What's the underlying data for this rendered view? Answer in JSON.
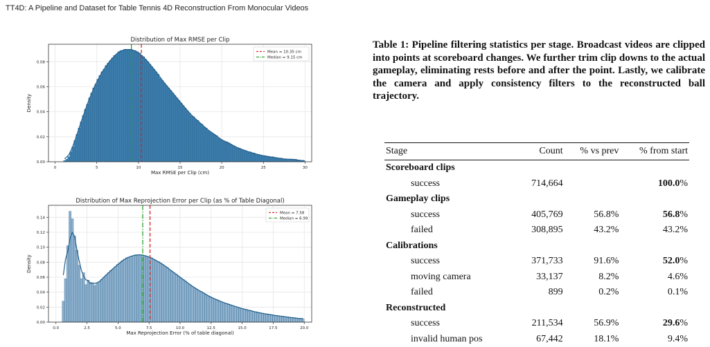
{
  "header": {
    "running_title": "TT4D: A Pipeline and Dataset for Table Tennis 4D Reconstruction From Monocular Videos"
  },
  "colors": {
    "bar_fill": "#3b7dad",
    "bar_fill_light": "#8fb2cf",
    "bar_edge": "#2a5f86",
    "kde_line": "#1f5e8c",
    "mean_line": "#d62728",
    "median_line": "#2ca02c"
  },
  "chart_data": [
    {
      "type": "bar",
      "title": "Distribution of Max RMSE per Clip",
      "xlabel": "Max RMSE per Clip (cm)",
      "ylabel": "Density",
      "xlim": [
        -0.8,
        30.8
      ],
      "ylim": [
        0,
        0.094
      ],
      "xticks": [
        0,
        5,
        10,
        15,
        20,
        25,
        30
      ],
      "yticks": [
        0.0,
        0.02,
        0.04,
        0.06,
        0.08
      ],
      "ytick_labels": [
        "0.00",
        "0.02",
        "0.04",
        "0.06",
        "0.08"
      ],
      "grid": true,
      "legend_position": "top-right",
      "bin_range": [
        1.0,
        30.0
      ],
      "bin_count": 116,
      "values": [
        0.001,
        0.002,
        0.004,
        0.008,
        0.012,
        0.017,
        0.022,
        0.027,
        0.032,
        0.037,
        0.042,
        0.046,
        0.051,
        0.055,
        0.059,
        0.062,
        0.066,
        0.069,
        0.072,
        0.074,
        0.077,
        0.079,
        0.081,
        0.083,
        0.085,
        0.086,
        0.088,
        0.089,
        0.089,
        0.09,
        0.09,
        0.09,
        0.09,
        0.089,
        0.089,
        0.088,
        0.087,
        0.085,
        0.084,
        0.082,
        0.08,
        0.078,
        0.076,
        0.074,
        0.072,
        0.07,
        0.067,
        0.065,
        0.063,
        0.061,
        0.059,
        0.057,
        0.055,
        0.053,
        0.051,
        0.049,
        0.047,
        0.045,
        0.043,
        0.041,
        0.039,
        0.037,
        0.036,
        0.034,
        0.033,
        0.031,
        0.03,
        0.028,
        0.027,
        0.025,
        0.024,
        0.023,
        0.022,
        0.021,
        0.019,
        0.018,
        0.017,
        0.016,
        0.016,
        0.015,
        0.014,
        0.013,
        0.012,
        0.011,
        0.011,
        0.01,
        0.009,
        0.009,
        0.008,
        0.008,
        0.007,
        0.007,
        0.006,
        0.006,
        0.005,
        0.005,
        0.005,
        0.004,
        0.004,
        0.004,
        0.004,
        0.003,
        0.003,
        0.003,
        0.003,
        0.002,
        0.002,
        0.002,
        0.002,
        0.002,
        0.002,
        0.002,
        0.001,
        0.001,
        0.001,
        0.001
      ],
      "mean": 10.35,
      "median": 9.15,
      "legend": {
        "mean_label": "Mean = 10.35 cm",
        "median_label": "Median = 9.15 cm"
      }
    },
    {
      "type": "bar",
      "title": "Distribution of Max Reprojection Error per Clip (as % of Table Diagonal)",
      "xlabel": "Max Reprojection Error (% of table diagonal)",
      "ylabel": "Density",
      "xlim": [
        -0.6,
        20.6
      ],
      "ylim": [
        0,
        0.156
      ],
      "xticks": [
        0,
        2.5,
        5,
        7.5,
        10,
        12.5,
        15,
        17.5,
        20
      ],
      "xtick_labels": [
        "0.0",
        "2.5",
        "5.0",
        "7.5",
        "10.0",
        "12.5",
        "15.0",
        "17.5",
        "20.0"
      ],
      "yticks": [
        0.0,
        0.02,
        0.04,
        0.06,
        0.08,
        0.1,
        0.12,
        0.14
      ],
      "ytick_labels": [
        "0.00",
        "0.02",
        "0.04",
        "0.06",
        "0.08",
        "0.10",
        "0.12",
        "0.14"
      ],
      "grid": true,
      "legend_position": "top-right",
      "bin_range": [
        0.5,
        20.0
      ],
      "bin_count": 107,
      "values": [
        0.028,
        0.058,
        0.102,
        0.148,
        0.138,
        0.115,
        0.096,
        0.076,
        0.058,
        0.066,
        0.05,
        0.056,
        0.053,
        0.051,
        0.049,
        0.052,
        0.054,
        0.057,
        0.06,
        0.063,
        0.066,
        0.069,
        0.071,
        0.074,
        0.077,
        0.079,
        0.082,
        0.084,
        0.086,
        0.087,
        0.088,
        0.089,
        0.09,
        0.09,
        0.09,
        0.09,
        0.089,
        0.088,
        0.087,
        0.086,
        0.084,
        0.082,
        0.081,
        0.079,
        0.077,
        0.075,
        0.073,
        0.07,
        0.068,
        0.066,
        0.064,
        0.061,
        0.059,
        0.057,
        0.055,
        0.052,
        0.05,
        0.048,
        0.046,
        0.044,
        0.042,
        0.041,
        0.039,
        0.037,
        0.035,
        0.034,
        0.032,
        0.031,
        0.03,
        0.028,
        0.027,
        0.026,
        0.025,
        0.024,
        0.023,
        0.022,
        0.021,
        0.02,
        0.019,
        0.018,
        0.017,
        0.017,
        0.016,
        0.015,
        0.014,
        0.014,
        0.013,
        0.012,
        0.012,
        0.011,
        0.011,
        0.01,
        0.01,
        0.009,
        0.009,
        0.008,
        0.008,
        0.008,
        0.007,
        0.007,
        0.006,
        0.006,
        0.006,
        0.005,
        0.005,
        0.005,
        0.004
      ],
      "mean": 7.58,
      "median": 6.99,
      "legend": {
        "mean_label": "Mean = 7.58",
        "median_label": "Median = 6.99"
      }
    }
  ],
  "table": {
    "caption": "Table 1: Pipeline filtering statistics per stage. Broadcast videos are clipped into points at scoreboard changes. We further trim clip downs to the actual gameplay, eliminating rests before and after the point. Lastly, we calibrate the camera and apply consistency filters to the reconstructed ball trajectory.",
    "headers": {
      "stage": "Stage",
      "count": "Count",
      "vs_prev": "% vs prev",
      "from_start": "% from start"
    },
    "groups": {
      "scoreboard": {
        "label": "Scoreboard clips",
        "success": {
          "label": "success",
          "count": "714,664",
          "vs_prev": "",
          "from_start": "100.0",
          "pct": "%"
        }
      },
      "gameplay": {
        "label": "Gameplay clips",
        "success": {
          "label": "success",
          "count": "405,769",
          "vs_prev": "56.8%",
          "from_start": "56.8",
          "pct": "%"
        },
        "failed": {
          "label": "failed",
          "count": "308,895",
          "vs_prev": "43.2%",
          "from_start": "43.2%"
        }
      },
      "calibrations": {
        "label": "Calibrations",
        "success": {
          "label": "success",
          "count": "371,733",
          "vs_prev": "91.6%",
          "from_start": "52.0",
          "pct": "%"
        },
        "moving": {
          "label": "moving camera",
          "count": "33,137",
          "vs_prev": "8.2%",
          "from_start": "4.6%"
        },
        "failed": {
          "label": "failed",
          "count": "899",
          "vs_prev": "0.2%",
          "from_start": "0.1%"
        }
      },
      "reconstructed": {
        "label": "Reconstructed",
        "success": {
          "label": "success",
          "count": "211,534",
          "vs_prev": "56.9%",
          "from_start": "29.6",
          "pct": "%"
        },
        "invalid": {
          "label": "invalid human pos",
          "count": "67,442",
          "vs_prev": "18.1%",
          "from_start": "9.4%"
        }
      }
    }
  }
}
